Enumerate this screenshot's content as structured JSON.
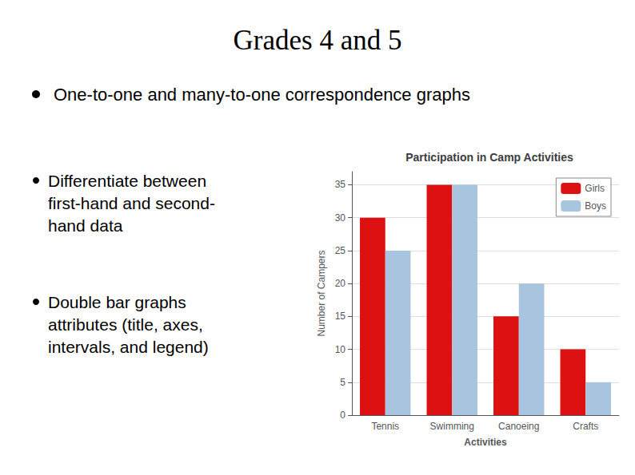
{
  "chart_data": {
    "type": "bar",
    "title": "Participation in Camp Activities",
    "categories": [
      "Tennis",
      "Swimming",
      "Canoeing",
      "Crafts"
    ],
    "series": [
      {
        "name": "Girls",
        "color": "#dd1111",
        "values": [
          30,
          35,
          15,
          10
        ]
      },
      {
        "name": "Boys",
        "color": "#a8c4de",
        "values": [
          25,
          35,
          20,
          5
        ]
      }
    ],
    "xlabel": "Activities",
    "ylabel": "Number of Campers",
    "ylim": [
      0,
      37
    ],
    "yticks": [
      0,
      5,
      10,
      15,
      20,
      25,
      30,
      35
    ],
    "grid": true,
    "legend": "upper right",
    "annotations": [
      "Grades 4 and 5",
      "One-to-one and many-to-one correspondence graphs",
      "Differentiate between\nfirst-hand and second-\nhand data",
      "Double bar graphs\nattributes (title, axes,\nintervals, and legend)"
    ]
  }
}
